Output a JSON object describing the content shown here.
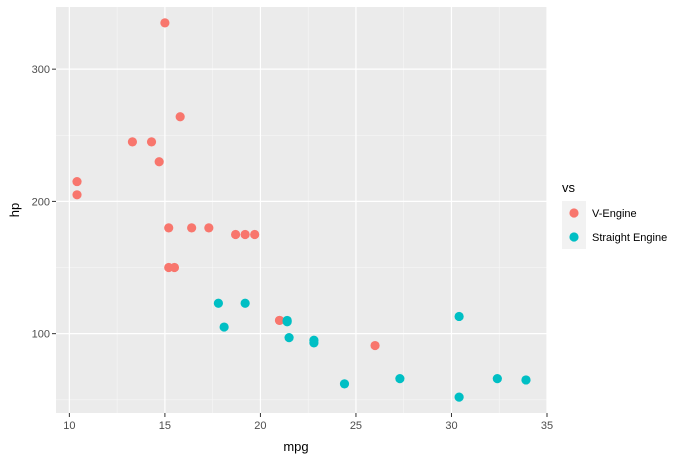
{
  "chart_data": {
    "type": "scatter",
    "xlabel": "mpg",
    "ylabel": "hp",
    "xlim": [
      9.3,
      35.0
    ],
    "ylim": [
      40,
      347
    ],
    "x_ticks": [
      10,
      15,
      20,
      25,
      30,
      35
    ],
    "y_ticks": [
      100,
      200,
      300
    ],
    "x_tick_labels": [
      "10",
      "15",
      "20",
      "25",
      "30",
      "35"
    ],
    "y_tick_labels": [
      "100",
      "200",
      "300"
    ],
    "grid": true,
    "legend": {
      "title": "vs",
      "placement": "right"
    },
    "series": [
      {
        "name": "V-Engine",
        "color": "#F8766D",
        "points": [
          {
            "x": 21.0,
            "y": 110
          },
          {
            "x": 21.0,
            "y": 110
          },
          {
            "x": 18.7,
            "y": 175
          },
          {
            "x": 14.3,
            "y": 245
          },
          {
            "x": 16.4,
            "y": 180
          },
          {
            "x": 17.3,
            "y": 180
          },
          {
            "x": 15.2,
            "y": 180
          },
          {
            "x": 10.4,
            "y": 205
          },
          {
            "x": 10.4,
            "y": 215
          },
          {
            "x": 14.7,
            "y": 230
          },
          {
            "x": 15.5,
            "y": 150
          },
          {
            "x": 15.2,
            "y": 150
          },
          {
            "x": 13.3,
            "y": 245
          },
          {
            "x": 19.2,
            "y": 175
          },
          {
            "x": 26.0,
            "y": 91
          },
          {
            "x": 15.8,
            "y": 264
          },
          {
            "x": 19.7,
            "y": 175
          },
          {
            "x": 15.0,
            "y": 335
          }
        ]
      },
      {
        "name": "Straight Engine",
        "color": "#00BFC4",
        "points": [
          {
            "x": 22.8,
            "y": 93
          },
          {
            "x": 21.4,
            "y": 110
          },
          {
            "x": 18.1,
            "y": 105
          },
          {
            "x": 24.4,
            "y": 62
          },
          {
            "x": 22.8,
            "y": 95
          },
          {
            "x": 19.2,
            "y": 123
          },
          {
            "x": 17.8,
            "y": 123
          },
          {
            "x": 32.4,
            "y": 66
          },
          {
            "x": 30.4,
            "y": 52
          },
          {
            "x": 33.9,
            "y": 65
          },
          {
            "x": 21.5,
            "y": 97
          },
          {
            "x": 27.3,
            "y": 66
          },
          {
            "x": 30.4,
            "y": 113
          },
          {
            "x": 21.4,
            "y": 109
          }
        ]
      }
    ]
  }
}
